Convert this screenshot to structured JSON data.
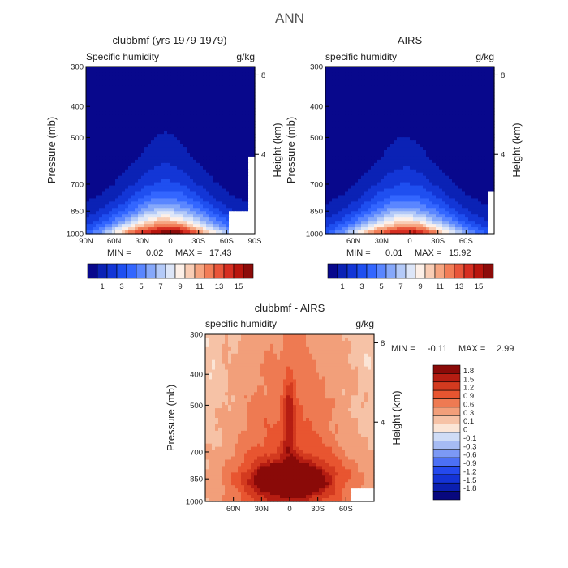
{
  "figure_title": "ANN",
  "colors": {
    "absolute_scale": [
      "#08088c",
      "#0b22b5",
      "#1336d6",
      "#1f4ff0",
      "#3366ff",
      "#5a86ff",
      "#86a8fa",
      "#b4caf8",
      "#dde6f8",
      "#fdf0e8",
      "#f9cdb5",
      "#f6a581",
      "#f27d57",
      "#e9553a",
      "#d62e21",
      "#b8150d",
      "#8c0b09"
    ],
    "difference_scale": [
      "#08087e",
      "#0b1fb0",
      "#1433d6",
      "#2449ee",
      "#4c70f5",
      "#7c99f5",
      "#a6bbf3",
      "#cfdcf6",
      "#fbe5d6",
      "#f6c2a6",
      "#f29f7a",
      "#ee7a52",
      "#e85530",
      "#d33a1f",
      "#b51d12",
      "#8a0a08"
    ],
    "mask": "#ffffff"
  },
  "chart_data": [
    {
      "type": "heatmap",
      "panel": "model",
      "title": "clubbmf (yrs 1979-1979)",
      "subtitle_left": "Specific humidity",
      "subtitle_right": "g/kg",
      "ylabel": "Pressure (mb)",
      "ylabel_right": "Height (km)",
      "xticks": [
        "90N",
        "60N",
        "30N",
        "0",
        "30S",
        "60S",
        "90S"
      ],
      "xtick_values": [
        90,
        60,
        30,
        0,
        -30,
        -60,
        -90
      ],
      "xlim": [
        90,
        -90
      ],
      "yticks": [
        "300",
        "400",
        "500",
        "700",
        "850",
        "1000"
      ],
      "ytick_values": [
        300,
        400,
        500,
        700,
        850,
        1000
      ],
      "ylim": [
        300,
        1000
      ],
      "height_ticks": [
        "8",
        "4"
      ],
      "height_tick_values": [
        8,
        4
      ],
      "stats": {
        "min_label": "MIN =",
        "min": "0.02",
        "max_label": "MAX =",
        "max": "17.43"
      },
      "colorbar_labels": [
        "1",
        "3",
        "5",
        "7",
        "9",
        "11",
        "13",
        "15"
      ],
      "colorbar_levels": [
        1,
        2,
        3,
        4,
        5,
        6,
        7,
        8,
        9,
        10,
        11,
        12,
        13,
        14,
        15,
        16
      ],
      "field": {
        "peak": 17.43,
        "center_lat": 5,
        "base_halfwidth": 55,
        "decay_top": 0.13,
        "masked_region": "60S-90S near surface"
      }
    },
    {
      "type": "heatmap",
      "panel": "obs",
      "title": "AIRS",
      "subtitle_left": "specific humidity",
      "subtitle_right": "g/kg",
      "ylabel": "Pressure (mb)",
      "ylabel_right": "Height (km)",
      "xticks": [
        "60N",
        "30N",
        "0",
        "30S",
        "60S"
      ],
      "xtick_values": [
        60,
        30,
        0,
        -30,
        -60
      ],
      "xlim": [
        90,
        -90
      ],
      "yticks": [
        "300",
        "400",
        "500",
        "700",
        "850",
        "1000"
      ],
      "ytick_values": [
        300,
        400,
        500,
        700,
        850,
        1000
      ],
      "ylim": [
        300,
        1000
      ],
      "height_ticks": [
        "8",
        "4"
      ],
      "height_tick_values": [
        8,
        4
      ],
      "stats": {
        "min_label": "MIN =",
        "min": "0.01",
        "max_label": "MAX =",
        "max": "15.92"
      },
      "colorbar_labels": [
        "1",
        "3",
        "5",
        "7",
        "9",
        "11",
        "13",
        "15"
      ],
      "colorbar_levels": [
        1,
        2,
        3,
        4,
        5,
        6,
        7,
        8,
        9,
        10,
        11,
        12,
        13,
        14,
        15,
        16
      ],
      "field": {
        "peak": 15.92,
        "center_lat": 5,
        "base_halfwidth": 55,
        "decay_top": 0.13,
        "masked_region": "far south edge"
      }
    },
    {
      "type": "heatmap",
      "panel": "difference",
      "title": "clubbmf - AIRS",
      "subtitle_left": "specific humidity",
      "subtitle_right": "g/kg",
      "ylabel": "Pressure (mb)",
      "ylabel_right": "Height (km)",
      "xticks": [
        "60N",
        "30N",
        "0",
        "30S",
        "60S"
      ],
      "xtick_values": [
        60,
        30,
        0,
        -30,
        -60
      ],
      "xlim": [
        90,
        -90
      ],
      "yticks": [
        "300",
        "400",
        "500",
        "700",
        "850",
        "1000"
      ],
      "ytick_values": [
        300,
        400,
        500,
        700,
        850,
        1000
      ],
      "ylim": [
        300,
        1000
      ],
      "height_ticks": [
        "8",
        "4"
      ],
      "height_tick_values": [
        8,
        4
      ],
      "stats": {
        "min_label": "MIN =",
        "min": "-0.11",
        "max_label": "MAX =",
        "max": "2.99"
      },
      "colorbar_labels": [
        "1.8",
        "1.5",
        "1.2",
        "0.9",
        "0.6",
        "0.3",
        "0.1",
        "0",
        "-0.1",
        "-0.3",
        "-0.6",
        "-0.9",
        "-1.2",
        "-1.5",
        "-1.8"
      ],
      "colorbar_levels": [
        -1.8,
        -1.5,
        -1.2,
        -0.9,
        -0.6,
        -0.3,
        -0.1,
        0,
        0.1,
        0.3,
        0.6,
        0.9,
        1.2,
        1.5,
        1.8
      ],
      "field": {
        "peak": 2.99,
        "center_lat": 0,
        "peak_pressure": 860
      }
    }
  ]
}
